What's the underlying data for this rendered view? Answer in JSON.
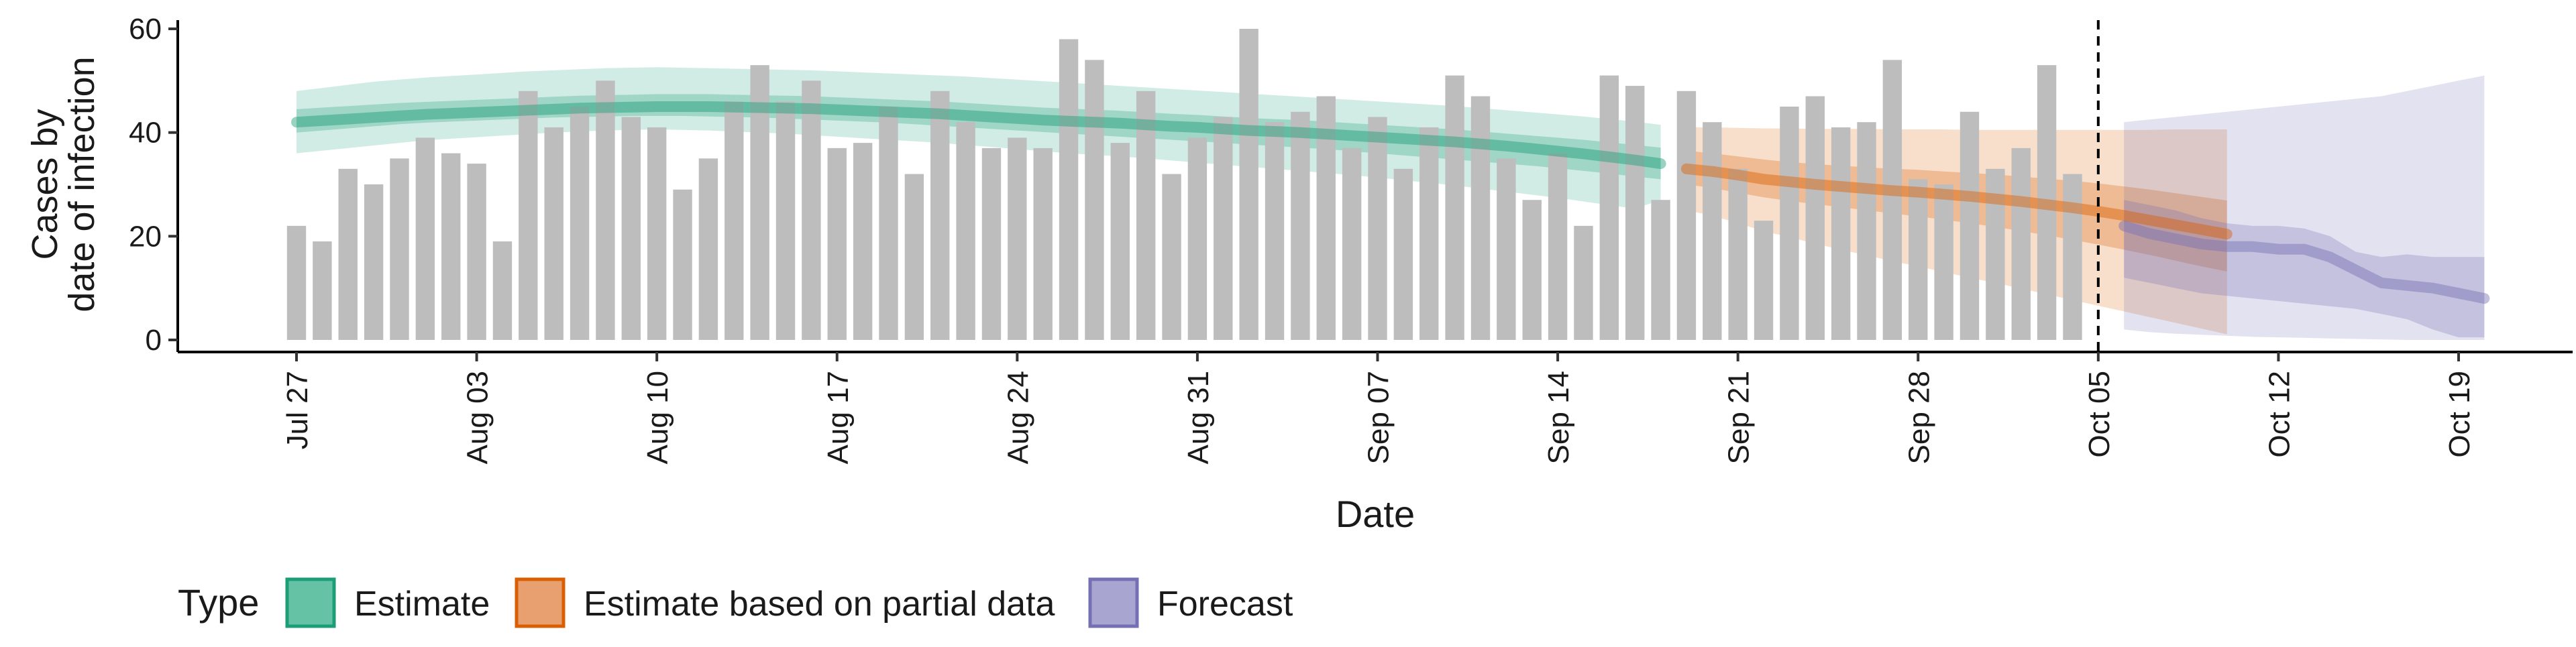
{
  "chart_data": {
    "type": "bar",
    "title": "",
    "xlabel": "Date",
    "ylabel_lines": [
      "Cases by",
      "date of infection"
    ],
    "ylim": [
      0,
      60
    ],
    "yticks": [
      0,
      20,
      40,
      60
    ],
    "x_start": "2020-07-27",
    "x_end": "2020-10-19",
    "forecast_cutoff": "2020-10-05",
    "xticks": [
      {
        "date": "2020-07-27",
        "label": "Jul 27"
      },
      {
        "date": "2020-08-03",
        "label": "Aug 03"
      },
      {
        "date": "2020-08-10",
        "label": "Aug 10"
      },
      {
        "date": "2020-08-17",
        "label": "Aug 17"
      },
      {
        "date": "2020-08-24",
        "label": "Aug 24"
      },
      {
        "date": "2020-08-31",
        "label": "Aug 31"
      },
      {
        "date": "2020-09-07",
        "label": "Sep 07"
      },
      {
        "date": "2020-09-14",
        "label": "Sep 14"
      },
      {
        "date": "2020-09-21",
        "label": "Sep 21"
      },
      {
        "date": "2020-09-28",
        "label": "Sep 28"
      },
      {
        "date": "2020-10-05",
        "label": "Oct 05"
      },
      {
        "date": "2020-10-12",
        "label": "Oct 12"
      },
      {
        "date": "2020-10-19",
        "label": "Oct 19"
      }
    ],
    "bars": {
      "start": "2020-07-27",
      "color": "#bdbdbd",
      "values": [
        22,
        19,
        33,
        30,
        35,
        39,
        36,
        34,
        19,
        48,
        41,
        45,
        50,
        43,
        41,
        29,
        35,
        46,
        53,
        46,
        50,
        37,
        38,
        45,
        32,
        48,
        42,
        37,
        39,
        37,
        58,
        54,
        38,
        48,
        32,
        39,
        43,
        60,
        42,
        44,
        47,
        37,
        43,
        33,
        41,
        51,
        47,
        35,
        27,
        36,
        22,
        51,
        49,
        27,
        48,
        42,
        33,
        23,
        45,
        47,
        41,
        42,
        54,
        31,
        30,
        44,
        33,
        37,
        53,
        32
      ]
    },
    "legend": {
      "title": "Type",
      "position": "bottom",
      "entries": [
        {
          "label": "Estimate",
          "fill": "#66c2a5",
          "stroke": "#1b9e77"
        },
        {
          "label": "Estimate based on partial data",
          "fill": "#e8a070",
          "stroke": "#d95f02"
        },
        {
          "label": "Forecast",
          "fill": "#a8a6d0",
          "stroke": "#7570b3"
        }
      ]
    },
    "series": [
      {
        "name": "Estimate",
        "color": "#1b9e77",
        "start": "2020-07-27",
        "median": [
          42.0,
          42.3,
          42.6,
          42.9,
          43.2,
          43.5,
          43.7,
          43.9,
          44.1,
          44.3,
          44.5,
          44.7,
          44.8,
          44.9,
          45.0,
          45.0,
          45.0,
          44.9,
          44.8,
          44.7,
          44.6,
          44.4,
          44.2,
          44.0,
          43.8,
          43.6,
          43.3,
          43.0,
          42.7,
          42.4,
          42.2,
          42.0,
          41.8,
          41.5,
          41.2,
          41.0,
          40.7,
          40.4,
          40.2,
          40.0,
          39.7,
          39.4,
          39.1,
          38.8,
          38.5,
          38.2,
          37.8,
          37.4,
          36.9,
          36.4,
          35.9,
          35.3,
          34.7,
          34.0
        ],
        "lower90": [
          36.0,
          36.5,
          37.0,
          37.5,
          38.0,
          38.5,
          38.8,
          39.1,
          39.4,
          39.7,
          40.0,
          40.2,
          40.4,
          40.5,
          40.6,
          40.5,
          40.4,
          40.2,
          40.0,
          39.8,
          39.5,
          39.2,
          38.9,
          38.6,
          38.3,
          38.0,
          37.6,
          37.2,
          36.8,
          36.4,
          36.0,
          35.7,
          35.4,
          35.0,
          34.6,
          34.2,
          33.8,
          33.4,
          33.0,
          32.6,
          32.2,
          31.8,
          31.3,
          30.8,
          30.3,
          29.8,
          29.2,
          28.6,
          28.0,
          27.4,
          26.7,
          26.0,
          25.3,
          27.0
        ],
        "upper90": [
          48.0,
          48.6,
          49.2,
          49.8,
          50.2,
          50.6,
          50.9,
          51.2,
          51.5,
          51.8,
          52.0,
          52.2,
          52.4,
          52.5,
          52.6,
          52.5,
          52.4,
          52.3,
          52.2,
          52.1,
          52.0,
          51.8,
          51.6,
          51.4,
          51.2,
          51.0,
          50.8,
          50.5,
          50.2,
          49.9,
          49.6,
          49.3,
          49.0,
          48.7,
          48.4,
          48.1,
          47.8,
          47.5,
          47.2,
          46.9,
          46.6,
          46.3,
          46.0,
          45.7,
          45.4,
          45.1,
          44.7,
          44.3,
          43.9,
          43.5,
          43.1,
          42.6,
          42.1,
          41.5
        ],
        "lower50": [
          40.0,
          40.4,
          40.8,
          41.2,
          41.6,
          41.9,
          42.1,
          42.3,
          42.5,
          42.7,
          42.9,
          43.0,
          43.1,
          43.2,
          43.2,
          43.2,
          43.1,
          43.0,
          42.9,
          42.7,
          42.5,
          42.3,
          42.1,
          41.9,
          41.6,
          41.3,
          41.0,
          40.7,
          40.4,
          40.1,
          39.8,
          39.5,
          39.2,
          38.9,
          38.6,
          38.3,
          38.0,
          37.7,
          37.4,
          37.1,
          36.8,
          36.4,
          36.0,
          35.6,
          35.2,
          34.8,
          34.4,
          34.0,
          33.6,
          33.1,
          32.6,
          32.1,
          31.5,
          31.0
        ],
        "upper50": [
          44.5,
          44.8,
          45.1,
          45.4,
          45.7,
          45.9,
          46.1,
          46.3,
          46.5,
          46.7,
          46.9,
          47.1,
          47.2,
          47.3,
          47.4,
          47.4,
          47.4,
          47.3,
          47.2,
          47.1,
          47.0,
          46.8,
          46.6,
          46.4,
          46.2,
          46.0,
          45.7,
          45.4,
          45.1,
          44.8,
          44.6,
          44.4,
          44.2,
          43.9,
          43.6,
          43.4,
          43.1,
          42.8,
          42.6,
          42.4,
          42.1,
          41.8,
          41.5,
          41.2,
          40.9,
          40.6,
          40.2,
          39.8,
          39.4,
          39.0,
          38.6,
          38.1,
          37.6,
          37.1
        ]
      },
      {
        "name": "Estimate based on partial data",
        "color": "#d95f02",
        "start": "2020-09-19",
        "median": [
          33.0,
          32.5,
          31.8,
          31.0,
          30.5,
          30.0,
          29.6,
          29.2,
          28.8,
          28.5,
          28.1,
          27.7,
          27.2,
          26.7,
          26.1,
          25.5,
          24.8,
          24.0,
          23.1,
          22.2,
          21.3,
          20.4
        ],
        "lower90": [
          25.0,
          24.0,
          22.5,
          21.0,
          19.8,
          18.6,
          17.4,
          16.3,
          15.2,
          14.2,
          13.1,
          12.0,
          11.0,
          9.9,
          8.8,
          7.7,
          6.6,
          5.5,
          4.4,
          3.3,
          2.2,
          1.1
        ],
        "upper90": [
          41.0,
          41.0,
          40.9,
          40.8,
          40.8,
          40.7,
          40.7,
          40.7,
          40.6,
          40.6,
          40.6,
          40.5,
          40.5,
          40.5,
          40.5,
          40.5,
          40.5,
          40.5,
          40.5,
          40.6,
          40.6,
          40.6
        ],
        "lower50": [
          30.0,
          29.3,
          28.4,
          27.5,
          26.8,
          26.2,
          25.6,
          25.0,
          24.4,
          23.8,
          23.2,
          22.5,
          21.8,
          21.0,
          20.2,
          19.3,
          18.4,
          17.4,
          16.4,
          15.3,
          14.2,
          13.2
        ],
        "upper50": [
          36.5,
          36.0,
          35.4,
          34.8,
          34.3,
          33.9,
          33.6,
          33.3,
          33.0,
          32.8,
          32.5,
          32.2,
          31.9,
          31.5,
          31.1,
          30.7,
          30.2,
          29.6,
          29.0,
          28.3,
          27.6,
          26.9
        ]
      },
      {
        "name": "Forecast",
        "color": "#7570b3",
        "start": "2020-10-06",
        "median": [
          22.0,
          20.5,
          19.5,
          18.5,
          18.0,
          18.0,
          17.5,
          17.5,
          16.0,
          13.5,
          11.0,
          10.5,
          10.0,
          9.0,
          8.0
        ],
        "lower90": [
          2.0,
          1.5,
          1.2,
          1.0,
          0.8,
          0.6,
          0.5,
          0.4,
          0.3,
          0.2,
          0.1,
          0.0,
          0.0,
          0.0,
          0.0
        ],
        "upper90": [
          42.0,
          42.5,
          43.0,
          43.5,
          44.0,
          44.5,
          45.0,
          45.5,
          46.0,
          46.5,
          47.0,
          48.0,
          49.0,
          50.0,
          51.0
        ],
        "lower50": [
          12.0,
          11.0,
          10.0,
          9.0,
          8.5,
          8.0,
          7.5,
          7.0,
          6.5,
          6.0,
          5.0,
          4.0,
          2.0,
          0.5,
          0.5
        ],
        "upper50": [
          27.0,
          26.0,
          25.0,
          23.5,
          22.5,
          22.0,
          22.0,
          21.5,
          20.0,
          17.0,
          16.0,
          16.5,
          16.0,
          16.0,
          16.0
        ]
      }
    ]
  }
}
